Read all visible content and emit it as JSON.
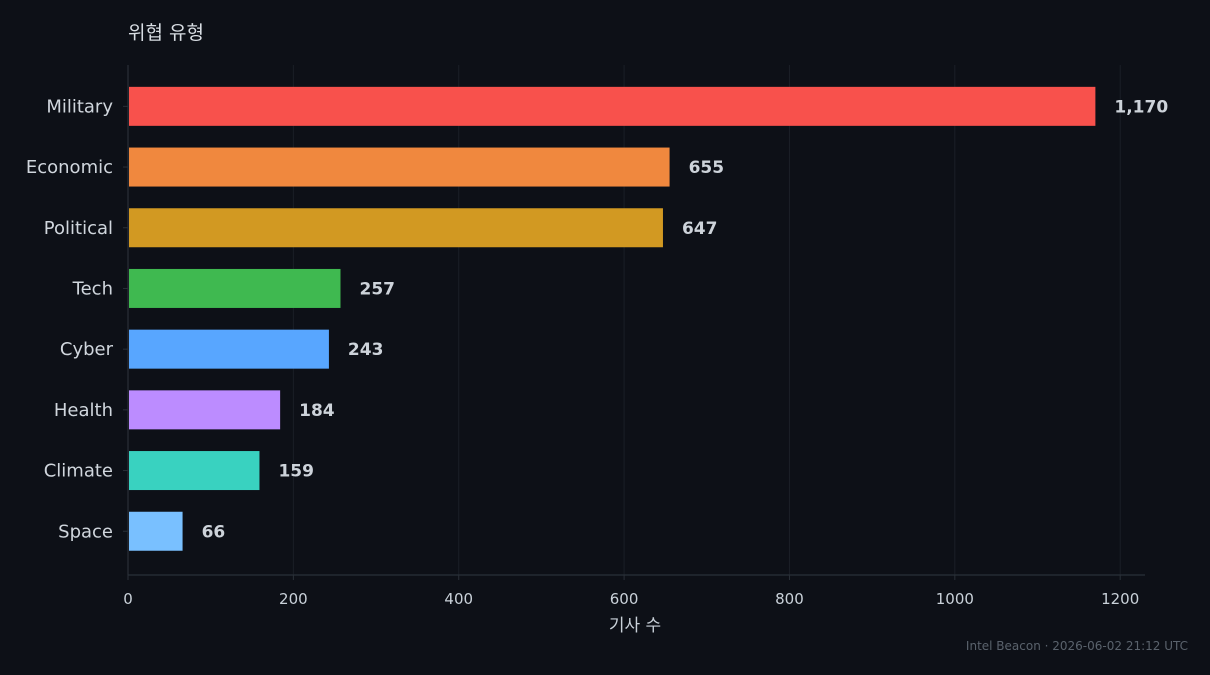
{
  "chart_data": {
    "type": "bar",
    "orientation": "horizontal",
    "title": "위협 유형",
    "xlabel": "기사 수",
    "ylabel": "",
    "categories": [
      "Military",
      "Economic",
      "Political",
      "Tech",
      "Cyber",
      "Health",
      "Climate",
      "Space"
    ],
    "values": [
      1170,
      655,
      647,
      257,
      243,
      184,
      159,
      66
    ],
    "value_labels": [
      "1,170",
      "655",
      "647",
      "257",
      "243",
      "184",
      "159",
      "66"
    ],
    "colors": [
      "#f8514c",
      "#f0883e",
      "#d29922",
      "#3fb950",
      "#58a6ff",
      "#bc8cff",
      "#39d2c0",
      "#79c0ff"
    ],
    "xlim": [
      0,
      1230
    ],
    "xticks": [
      0,
      200,
      400,
      600,
      800,
      1000,
      1200
    ],
    "grid": "vertical",
    "legend": "none"
  },
  "footer": {
    "text": "Intel Beacon · 2026-06-02 21:12 UTC"
  },
  "theme": {
    "background": "#0d1017",
    "grid_color": "#1a1f27",
    "axis_color": "#2a3038"
  }
}
